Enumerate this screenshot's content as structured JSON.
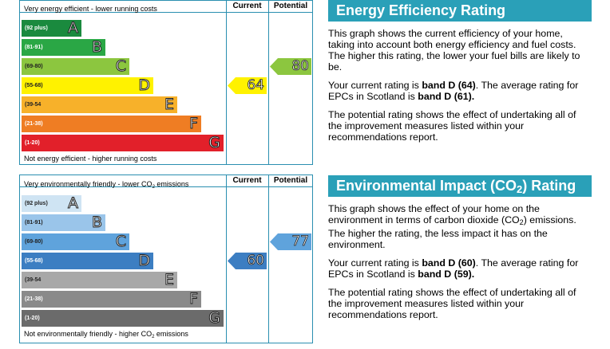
{
  "energy": {
    "top_label": "Very energy efficient - lower running costs",
    "bottom_label": "Not energy efficient - higher running costs",
    "col_current": "Current",
    "col_potential": "Potential",
    "bands": [
      {
        "range": "(92 plus)",
        "letter": "A",
        "color": "#1a8a3e"
      },
      {
        "range": "(81-91)",
        "letter": "B",
        "color": "#2aa745"
      },
      {
        "range": "(69-80)",
        "letter": "C",
        "color": "#8cc63f"
      },
      {
        "range": "(55-68)",
        "letter": "D",
        "color": "#fff200"
      },
      {
        "range": "(39-54",
        "letter": "E",
        "color": "#f7b12a"
      },
      {
        "range": "(21-38)",
        "letter": "F",
        "color": "#ef7d23"
      },
      {
        "range": "(1-20)",
        "letter": "G",
        "color": "#e2202a"
      }
    ],
    "current": {
      "value": "64",
      "band": "D",
      "color": "#fff200"
    },
    "potential": {
      "value": "80",
      "band": "C",
      "color": "#8cc63f"
    }
  },
  "environment": {
    "top_label": "Very environmentally friendly - lower CO",
    "top_label_sub": "2",
    "top_label_end": " emissions",
    "bottom_label": "Not environmentally friendly - higher CO",
    "bottom_label_sub": "2",
    "bottom_label_end": " emissions",
    "col_current": "Current",
    "col_potential": "Potential",
    "bands": [
      {
        "range": "(92 plus)",
        "letter": "A",
        "color": "#cfe4f3"
      },
      {
        "range": "(81-91)",
        "letter": "B",
        "color": "#9ac5ea"
      },
      {
        "range": "(69-80)",
        "letter": "C",
        "color": "#5fa3dc"
      },
      {
        "range": "(55-68)",
        "letter": "D",
        "color": "#3c7ec2"
      },
      {
        "range": "(39-54",
        "letter": "E",
        "color": "#a8a8a8"
      },
      {
        "range": "(21-38)",
        "letter": "F",
        "color": "#8a8a8a"
      },
      {
        "range": "(1-20)",
        "letter": "G",
        "color": "#6b6b6b"
      }
    ],
    "current": {
      "value": "60",
      "band": "D",
      "color": "#3c7ec2"
    },
    "potential": {
      "value": "77",
      "band": "C",
      "color": "#5fa3dc"
    }
  },
  "energy_text": {
    "title": "Energy Efficiency Rating",
    "p1": "This graph shows the current efficiency of your home, taking into account both energy efficiency and fuel costs. The higher this rating, the lower your fuel bills are likely to be.",
    "p2_a": "Your current rating is ",
    "p2_b": "band D (64)",
    "p2_c": ". The average rating for EPCs in Scotland is ",
    "p2_d": "band D (61).",
    "p3": "The potential rating shows the effect of undertaking all of the improvement measures listed within your recommendations report."
  },
  "env_text": {
    "title_a": "Environmental Impact (CO",
    "title_sub": "2",
    "title_b": ") Rating",
    "p1_a": "This graph shows the effect of your home on the environment in terms of carbon dioxide (CO",
    "p1_sub": "2",
    "p1_b": ") emissions. The higher the rating, the less impact it has on the environment.",
    "p2_a": "Your current rating is ",
    "p2_b": "band D (60)",
    "p2_c": ". The average rating for EPCs in Scotland is ",
    "p2_d": "band D (59).",
    "p3": "The potential rating shows the effect of undertaking all of the improvement measures listed within your recommendations report."
  }
}
